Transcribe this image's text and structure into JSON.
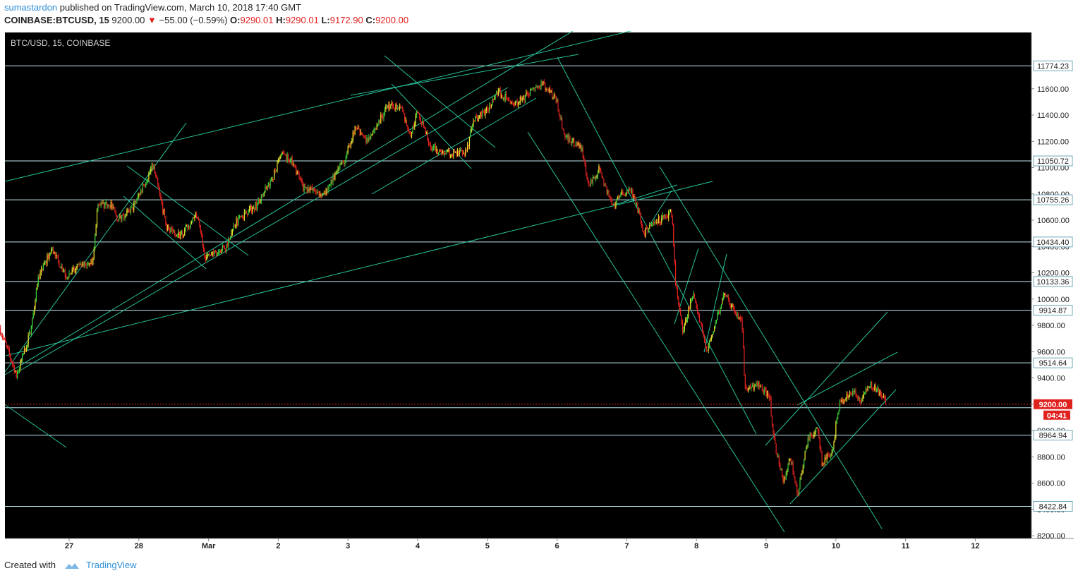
{
  "header": {
    "author": "sumastardon",
    "published_text": " published on TradingView.com, March 10, 2018 17:40 GMT",
    "symbol": "COINBASE:BTCUSD, 15",
    "last": "9200.00",
    "change": "−55.00 (−0.59%)",
    "open_label": "O:",
    "open": "9290.01",
    "high_label": "H:",
    "high": "9290.01",
    "low_label": "L:",
    "low": "9172.90",
    "close_label": "C:",
    "close": "9200.00"
  },
  "footer": {
    "created_with": "Created with",
    "brand": "TradingView"
  },
  "colors": {
    "up": "#e6e22e",
    "up2": "#3bd13b",
    "down": "#e0221f",
    "line": "#27c29a",
    "hline": "#bfe8f0",
    "bg": "#000000"
  },
  "chart_data": {
    "type": "candlestick",
    "title": "BTC/USD, 15, COINBASE",
    "xlabel": "",
    "ylabel": "",
    "ylim": [
      8150,
      11850
    ],
    "x_ticks": [
      "27",
      "28",
      "Mar",
      "2",
      "3",
      "4",
      "5",
      "6",
      "7",
      "8",
      "9",
      "10",
      "11",
      "12"
    ],
    "y_ticks": [
      "8200.00",
      "8400.00",
      "8600.00",
      "8800.00",
      "9000.00",
      "9200.00",
      "9400.00",
      "9600.00",
      "9800.00",
      "10000.00",
      "10200.00",
      "10400.00",
      "10600.00",
      "10800.00",
      "11000.00",
      "11200.00",
      "11400.00",
      "11600.00"
    ],
    "horizontal_levels": [
      "11774.23",
      "11050.72",
      "10755.26",
      "10434.40",
      "10133.36",
      "9914.87",
      "9514.64",
      "8964.94",
      "8422.84"
    ],
    "last_price": "9200.00",
    "countdown": "04:41",
    "price_path": [
      {
        "x": 26.0,
        "y": 9780
      },
      {
        "x": 26.25,
        "y": 9420
      },
      {
        "x": 26.45,
        "y": 9760
      },
      {
        "x": 26.55,
        "y": 10150
      },
      {
        "x": 26.75,
        "y": 10380
      },
      {
        "x": 26.95,
        "y": 10180
      },
      {
        "x": 27.35,
        "y": 10300
      },
      {
        "x": 27.4,
        "y": 10700
      },
      {
        "x": 27.6,
        "y": 10720
      },
      {
        "x": 27.7,
        "y": 10600
      },
      {
        "x": 27.9,
        "y": 10680
      },
      {
        "x": 28.1,
        "y": 10900
      },
      {
        "x": 28.2,
        "y": 11020
      },
      {
        "x": 28.4,
        "y": 10550
      },
      {
        "x": 28.6,
        "y": 10480
      },
      {
        "x": 28.85,
        "y": 10650
      },
      {
        "x": 28.95,
        "y": 10300
      },
      {
        "x": 29.25,
        "y": 10400
      },
      {
        "x": 29.4,
        "y": 10600
      },
      {
        "x": 29.7,
        "y": 10720
      },
      {
        "x": 29.9,
        "y": 10900
      },
      {
        "x": 30.05,
        "y": 11100
      },
      {
        "x": 30.2,
        "y": 11050
      },
      {
        "x": 30.35,
        "y": 10850
      },
      {
        "x": 30.65,
        "y": 10800
      },
      {
        "x": 30.95,
        "y": 11050
      },
      {
        "x": 31.1,
        "y": 11300
      },
      {
        "x": 31.3,
        "y": 11200
      },
      {
        "x": 31.55,
        "y": 11450
      },
      {
        "x": 31.75,
        "y": 11480
      },
      {
        "x": 31.9,
        "y": 11250
      },
      {
        "x": 32.0,
        "y": 11430
      },
      {
        "x": 32.2,
        "y": 11150
      },
      {
        "x": 32.4,
        "y": 11100
      },
      {
        "x": 32.7,
        "y": 11120
      },
      {
        "x": 32.8,
        "y": 11350
      },
      {
        "x": 33.0,
        "y": 11450
      },
      {
        "x": 33.15,
        "y": 11580
      },
      {
        "x": 33.4,
        "y": 11480
      },
      {
        "x": 33.6,
        "y": 11560
      },
      {
        "x": 33.8,
        "y": 11640
      },
      {
        "x": 34.0,
        "y": 11500
      },
      {
        "x": 34.1,
        "y": 11250
      },
      {
        "x": 34.35,
        "y": 11150
      },
      {
        "x": 34.45,
        "y": 10850
      },
      {
        "x": 34.6,
        "y": 10980
      },
      {
        "x": 34.8,
        "y": 10700
      },
      {
        "x": 34.95,
        "y": 10820
      },
      {
        "x": 35.1,
        "y": 10800
      },
      {
        "x": 35.25,
        "y": 10500
      },
      {
        "x": 35.45,
        "y": 10600
      },
      {
        "x": 35.65,
        "y": 10650
      },
      {
        "x": 35.7,
        "y": 10100
      },
      {
        "x": 35.8,
        "y": 9750
      },
      {
        "x": 35.95,
        "y": 10050
      },
      {
        "x": 36.15,
        "y": 9600
      },
      {
        "x": 36.4,
        "y": 10050
      },
      {
        "x": 36.55,
        "y": 9900
      },
      {
        "x": 36.65,
        "y": 9850
      },
      {
        "x": 36.7,
        "y": 9300
      },
      {
        "x": 36.9,
        "y": 9350
      },
      {
        "x": 37.05,
        "y": 9250
      },
      {
        "x": 37.12,
        "y": 8900
      },
      {
        "x": 37.25,
        "y": 8600
      },
      {
        "x": 37.35,
        "y": 8800
      },
      {
        "x": 37.45,
        "y": 8500
      },
      {
        "x": 37.6,
        "y": 8950
      },
      {
        "x": 37.75,
        "y": 9000
      },
      {
        "x": 37.8,
        "y": 8750
      },
      {
        "x": 37.95,
        "y": 8850
      },
      {
        "x": 38.05,
        "y": 9200
      },
      {
        "x": 38.25,
        "y": 9300
      },
      {
        "x": 38.35,
        "y": 9220
      },
      {
        "x": 38.5,
        "y": 9350
      },
      {
        "x": 38.65,
        "y": 9280
      },
      {
        "x": 38.72,
        "y": 9200
      }
    ],
    "candle_seed": 7
  }
}
